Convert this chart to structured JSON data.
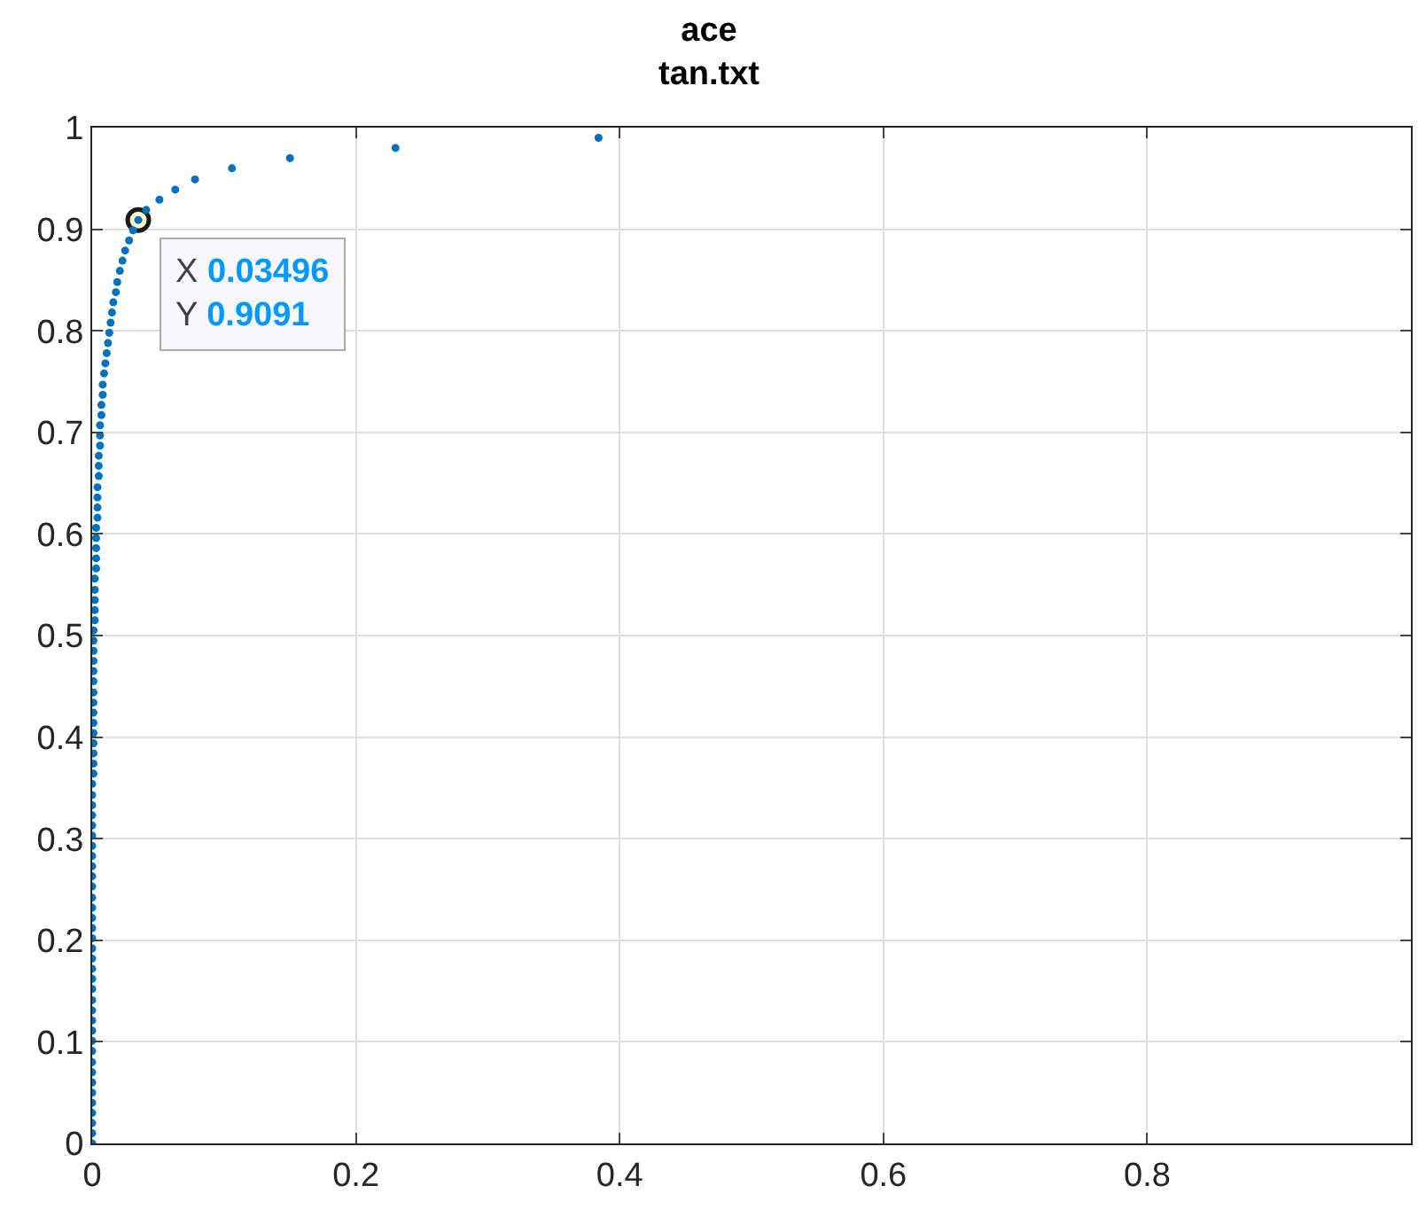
{
  "chart_data": {
    "type": "scatter",
    "title": "ace",
    "subtitle": "tan.txt",
    "x": [
      0,
      0,
      0,
      0,
      0,
      0,
      0,
      0,
      0,
      0,
      0,
      0,
      0,
      0,
      0,
      0,
      0,
      0,
      0,
      0,
      0,
      0,
      0,
      0,
      0,
      0,
      0,
      0,
      0,
      0,
      0,
      0,
      0,
      0,
      0,
      0,
      0.001,
      0.001,
      0.001,
      0.001,
      0.001,
      0.001,
      0.001,
      0.001,
      0.001,
      0.001,
      0.001,
      0.001,
      0.001,
      0.001,
      0.001,
      0.002,
      0.002,
      0.002,
      0.002,
      0.002,
      0.003,
      0.003,
      0.003,
      0.003,
      0.003,
      0.004,
      0.004,
      0.004,
      0.004,
      0.005,
      0.005,
      0.005,
      0.006,
      0.006,
      0.006,
      0.007,
      0.007,
      0.008,
      0.008,
      0.009,
      0.01,
      0.011,
      0.012,
      0.013,
      0.014,
      0.015,
      0.016,
      0.018,
      0.019,
      0.021,
      0.023,
      0.025,
      0.028,
      0.031,
      0.03496,
      0.041,
      0.051,
      0.063,
      0.078,
      0.106,
      0.15,
      0.23,
      0.384
    ],
    "series": [
      {
        "color": "#0072bd",
        "values": [
          0,
          0.01,
          0.02,
          0.03,
          0.04,
          0.05,
          0.06,
          0.07,
          0.08,
          0.091,
          0.101,
          0.111,
          0.121,
          0.131,
          0.141,
          0.152,
          0.162,
          0.172,
          0.182,
          0.192,
          0.202,
          0.212,
          0.222,
          0.232,
          0.242,
          0.253,
          0.263,
          0.273,
          0.283,
          0.293,
          0.303,
          0.313,
          0.323,
          0.333,
          0.343,
          0.354,
          0.364,
          0.374,
          0.384,
          0.394,
          0.404,
          0.414,
          0.424,
          0.434,
          0.444,
          0.455,
          0.465,
          0.475,
          0.485,
          0.495,
          0.505,
          0.515,
          0.525,
          0.535,
          0.545,
          0.556,
          0.566,
          0.576,
          0.586,
          0.596,
          0.606,
          0.616,
          0.626,
          0.636,
          0.646,
          0.657,
          0.667,
          0.677,
          0.687,
          0.697,
          0.707,
          0.717,
          0.727,
          0.737,
          0.747,
          0.758,
          0.768,
          0.778,
          0.788,
          0.798,
          0.808,
          0.818,
          0.828,
          0.838,
          0.848,
          0.859,
          0.869,
          0.879,
          0.889,
          0.899,
          0.9091,
          0.919,
          0.929,
          0.939,
          0.949,
          0.96,
          0.97,
          0.98,
          0.99
        ]
      }
    ],
    "xlim": [
      0,
      1
    ],
    "ylim": [
      0,
      1
    ],
    "xticks": [
      0,
      0.2,
      0.4,
      0.6,
      0.8
    ],
    "yticks": [
      0,
      0.1,
      0.2,
      0.3,
      0.4,
      0.5,
      0.6,
      0.7,
      0.8,
      0.9,
      1
    ],
    "grid": true,
    "marker": "circle",
    "annotations": [
      {
        "text": "X 0.03496\nY 0.9091",
        "x": 0.03496,
        "y": 0.9091
      }
    ]
  }
}
